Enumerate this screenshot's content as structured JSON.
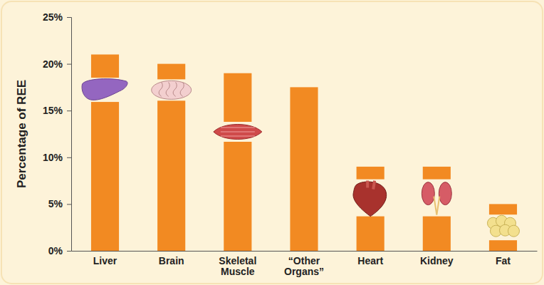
{
  "chart_data": {
    "type": "bar",
    "y_label": "Percentage of REE",
    "categories": [
      "Liver",
      "Brain",
      "Skeletal Muscle",
      "“Other Organs”",
      "Heart",
      "Kidney",
      "Fat"
    ],
    "values": [
      21,
      20,
      19,
      17.5,
      9,
      9,
      5
    ],
    "color": "#f28a22",
    "ylim": [
      0,
      25
    ],
    "yticks": [
      {
        "value": 0,
        "label": "0%"
      },
      {
        "value": 5,
        "label": "5%"
      },
      {
        "value": 10,
        "label": "10%"
      },
      {
        "value": 15,
        "label": "15%"
      },
      {
        "value": 20,
        "label": "20%"
      },
      {
        "value": 25,
        "label": "25%"
      }
    ],
    "grid": false
  }
}
